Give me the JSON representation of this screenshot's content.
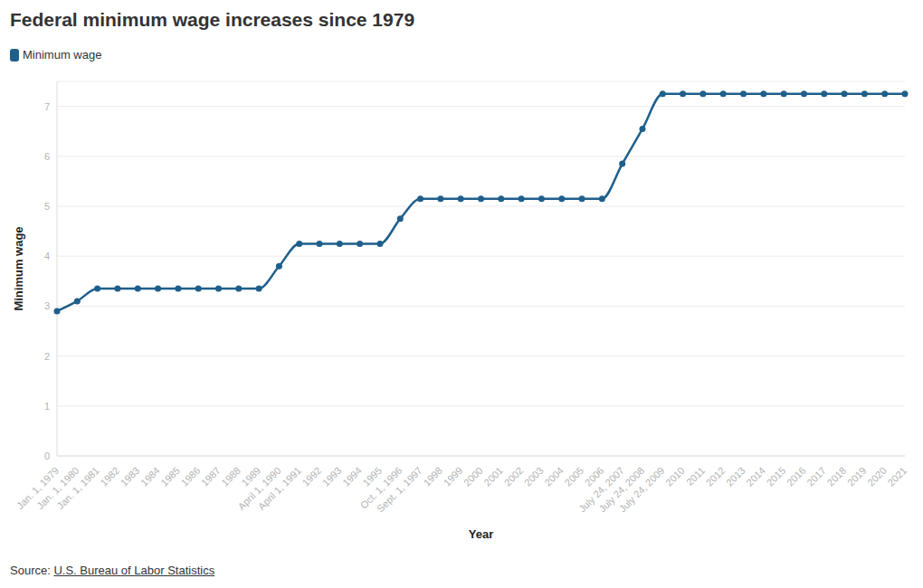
{
  "chart_data": {
    "type": "line",
    "title": "Federal minimum wage increases since 1979",
    "x_label": "Year",
    "y_label": "Minimum wage",
    "source_label": "Source:",
    "source": "U.S. Bureau of Labor Statistics",
    "categories": [
      "Jan. 1, 1979",
      "Jan. 1, 1980",
      "Jan. 1, 1981",
      "1982",
      "1983",
      "1984",
      "1985",
      "1986",
      "1987",
      "1988",
      "1989",
      "April 1, 1990",
      "April 1, 1991",
      "1992",
      "1993",
      "1994",
      "1995",
      "Oct. 1, 1996",
      "Sept. 1, 1997",
      "1998",
      "1999",
      "2000",
      "2001",
      "2002",
      "2003",
      "2004",
      "2005",
      "2006",
      "July 24, 2007",
      "July 24, 2008",
      "July 24, 2009",
      "2010",
      "2011",
      "2012",
      "2013",
      "2014",
      "2015",
      "2016",
      "2017",
      "2018",
      "2019",
      "2020",
      "2021"
    ],
    "series": [
      {
        "name": "Minimum wage",
        "color": "#1f5f8b",
        "values": [
          2.9,
          3.1,
          3.35,
          3.35,
          3.35,
          3.35,
          3.35,
          3.35,
          3.35,
          3.35,
          3.35,
          3.8,
          4.25,
          4.25,
          4.25,
          4.25,
          4.25,
          4.75,
          5.15,
          5.15,
          5.15,
          5.15,
          5.15,
          5.15,
          5.15,
          5.15,
          5.15,
          5.15,
          5.85,
          6.55,
          7.25,
          7.25,
          7.25,
          7.25,
          7.25,
          7.25,
          7.25,
          7.25,
          7.25,
          7.25,
          7.25,
          7.25,
          7.25
        ]
      }
    ],
    "ylim": [
      0,
      7.5
    ],
    "yticks": [
      0,
      1,
      2,
      3,
      4,
      5,
      6,
      7
    ],
    "grid": true,
    "legend": "top-left",
    "marker": "circle"
  }
}
